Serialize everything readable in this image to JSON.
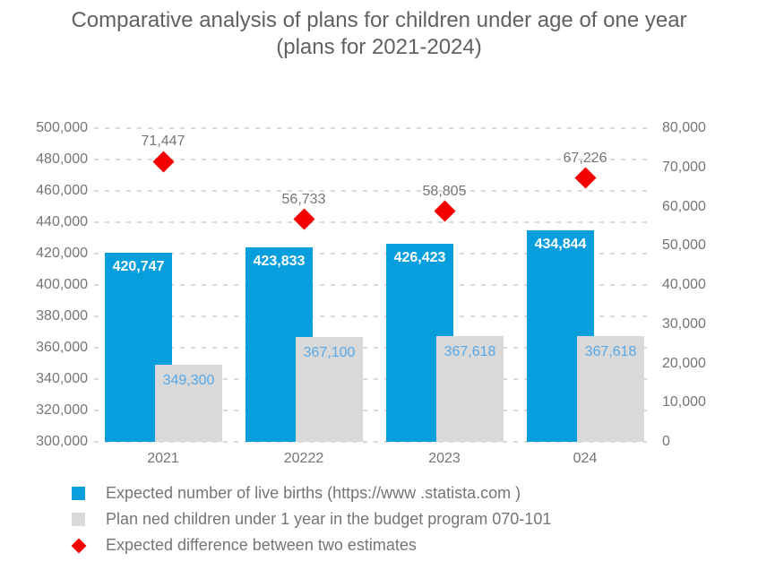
{
  "title": {
    "line1": "Comparative analysis of plans for children under age of one year",
    "line2": "(plans for 2021-2024)"
  },
  "chart_data": {
    "type": "bar",
    "title": "Comparative analysis of plans for children under age of one year (plans for 2021-2024)",
    "categories": [
      "2021",
      "20222",
      "2023",
      "024"
    ],
    "series": [
      {
        "name": "Expected number of live births (https://www .statista.com )",
        "chart_type": "bar",
        "axis": "left",
        "color": "#069edd",
        "label_color": "#ffffff",
        "values": [
          420747,
          423833,
          426423,
          434844
        ],
        "value_labels": [
          "420,747",
          "423,833",
          "426,423",
          "434,844"
        ]
      },
      {
        "name": "Plan ned children under 1 year in the budget program 070-101",
        "chart_type": "bar",
        "axis": "left",
        "color": "#d9d9d9",
        "label_color": "#56a8e8",
        "values": [
          349300,
          367100,
          367618,
          367618
        ],
        "value_labels": [
          "349,300",
          "367,100",
          "367,618",
          "367,618"
        ]
      },
      {
        "name": "Expected difference between two estimates",
        "chart_type": "scatter",
        "marker": "diamond",
        "axis": "right",
        "color": "#f40000",
        "label_color": "#757575",
        "values": [
          71447,
          56733,
          58805,
          67226
        ],
        "value_labels": [
          "71,447",
          "56,733",
          "58,805",
          "67,226"
        ]
      }
    ],
    "left_axis": {
      "min": 300000,
      "max": 500000,
      "step": 20000,
      "ticks": [
        "500,000",
        "480,000",
        "460,000",
        "440,000",
        "420,000",
        "400,000",
        "380,000",
        "360,000",
        "340,000",
        "320,000",
        "300,000"
      ]
    },
    "right_axis": {
      "min": 0,
      "max": 80000,
      "step": 10000,
      "ticks": [
        "80,000",
        "70,000",
        "60,000",
        "50,000",
        "40,000",
        "30,000",
        "20,000",
        "10,000",
        "0"
      ]
    },
    "grid": {
      "style": "dashed-horizontal",
      "color": "#d9d9d9"
    },
    "legend_position": "bottom-left",
    "background": "#ffffff"
  },
  "legend": {
    "items": [
      {
        "label": "Expected number of live births (https://www .statista.com )",
        "marker": "square",
        "color": "#069edd"
      },
      {
        "label": "Plan ned children under 1 year in the budget program 070-101",
        "marker": "square",
        "color": "#d9d9d9"
      },
      {
        "label": "Expected difference between two estimates",
        "marker": "diamond",
        "color": "#f40000"
      }
    ]
  }
}
